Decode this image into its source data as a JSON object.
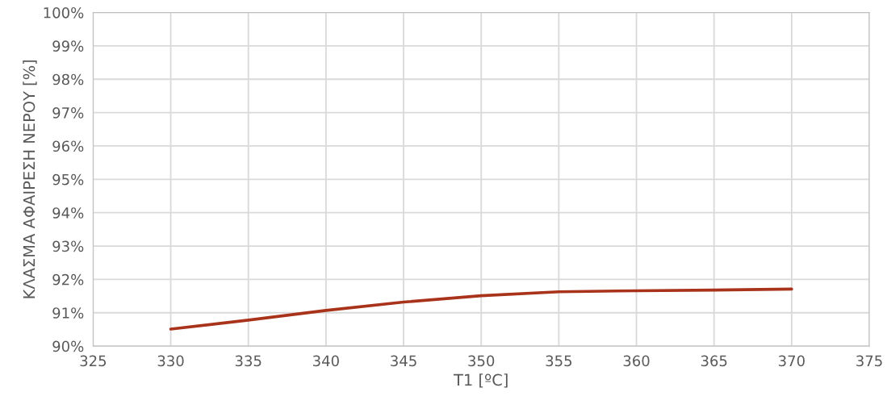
{
  "chart_data": {
    "type": "line",
    "xlabel": "T1 [ºC]",
    "ylabel": "ΚΛΑΣΜΑ ΑΦΑΙΡΕΣΗ ΝΕΡΟΥ [%]",
    "x": [
      330,
      335,
      340,
      345,
      350,
      355,
      360,
      365,
      370
    ],
    "series": [
      {
        "color": "#a8321a",
        "values": [
          90.51,
          90.78,
          91.07,
          91.32,
          91.51,
          91.63,
          91.66,
          91.68,
          91.71
        ]
      }
    ],
    "xlim": [
      325,
      375
    ],
    "xticks": [
      325,
      330,
      335,
      340,
      345,
      350,
      355,
      360,
      365,
      370,
      375
    ],
    "ylim": [
      90,
      100
    ],
    "yticks": [
      {
        "value": 90,
        "label": "90%"
      },
      {
        "value": 91,
        "label": "91%"
      },
      {
        "value": 92,
        "label": "92%"
      },
      {
        "value": 93,
        "label": "93%"
      },
      {
        "value": 94,
        "label": "94%"
      },
      {
        "value": 95,
        "label": "95%"
      },
      {
        "value": 96,
        "label": "96%"
      },
      {
        "value": 97,
        "label": "97%"
      },
      {
        "value": 98,
        "label": "98%"
      },
      {
        "value": 99,
        "label": "99%"
      },
      {
        "value": 100,
        "label": "100%"
      }
    ],
    "grid": true,
    "legend": false,
    "marker": "none",
    "line_style": "solid"
  }
}
